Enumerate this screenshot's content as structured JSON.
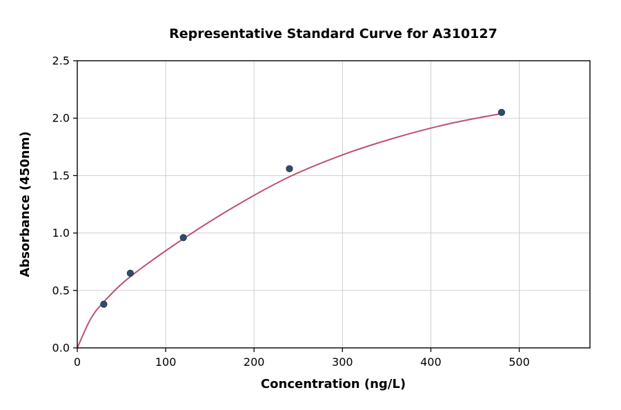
{
  "chart_data": {
    "type": "scatter",
    "title": "Representative Standard Curve for A310127",
    "xlabel": "Concentration (ng/L)",
    "ylabel": "Absorbance (450nm)",
    "xlim": [
      0,
      580
    ],
    "ylim": [
      0,
      2.5
    ],
    "x_ticks": [
      0,
      100,
      200,
      300,
      400,
      500
    ],
    "y_ticks": [
      0.0,
      0.5,
      1.0,
      1.5,
      2.0,
      2.5
    ],
    "grid": true,
    "legend": "none",
    "points": {
      "x": [
        30,
        60,
        120,
        240,
        480
      ],
      "y": [
        0.38,
        0.65,
        0.96,
        1.56,
        2.05
      ]
    },
    "fit_curve": [
      [
        0,
        0.0
      ],
      [
        15,
        0.25
      ],
      [
        30,
        0.4
      ],
      [
        60,
        0.62
      ],
      [
        120,
        0.95
      ],
      [
        180,
        1.24
      ],
      [
        240,
        1.49
      ],
      [
        300,
        1.68
      ],
      [
        360,
        1.83
      ],
      [
        420,
        1.95
      ],
      [
        480,
        2.04
      ]
    ],
    "colors": {
      "points": "#2e4d6e",
      "point_edge": "#22394f",
      "curve": "#c14e6e",
      "grid": "#c9c9c9",
      "axis": "#000000",
      "background": "#ffffff"
    }
  }
}
